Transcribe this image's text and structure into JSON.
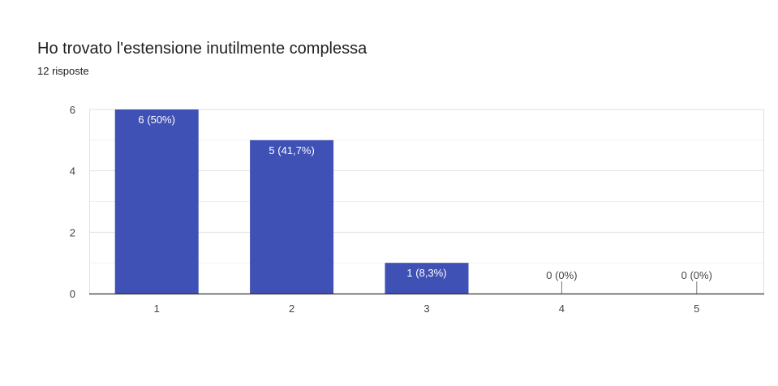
{
  "question": {
    "title": "Ho trovato l'estensione inutilmente complessa",
    "responses": "12 risposte"
  },
  "colors": {
    "bar": "#3f51b5",
    "grid": "#e0e0e0",
    "grid_minor": "#f1f1f1",
    "axis": "#333333",
    "label_inside": "#ffffff",
    "label_outside": "#444444"
  },
  "chart_data": {
    "type": "bar",
    "title": "Ho trovato l'estensione inutilmente complessa",
    "subtitle": "12 risposte",
    "categories": [
      "1",
      "2",
      "3",
      "4",
      "5"
    ],
    "values": [
      6,
      5,
      1,
      0,
      0
    ],
    "data_labels": [
      "6 (50%)",
      "5 (41,7%)",
      "1 (8,3%)",
      "0 (0%)",
      "0 (0%)"
    ],
    "ylim": [
      0,
      6
    ],
    "yticks": [
      0,
      2,
      4,
      6
    ],
    "grid": true,
    "legend": "none"
  }
}
